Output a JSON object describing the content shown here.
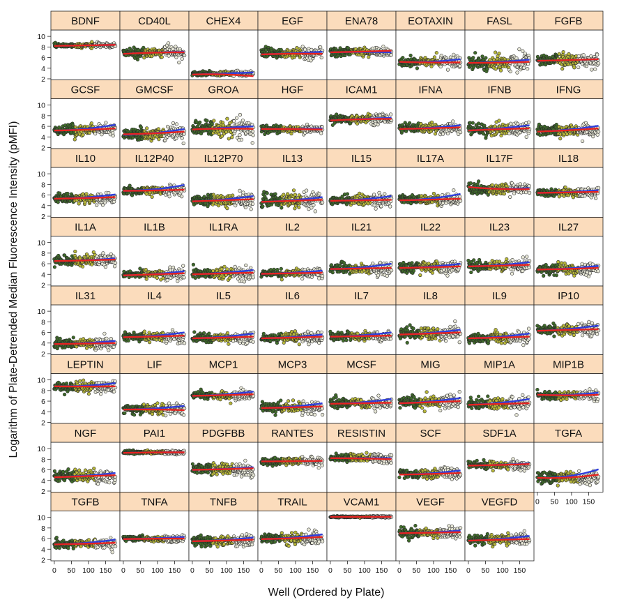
{
  "chart_data": {
    "type": "scatter",
    "layout": "trellis",
    "xlabel": "Well (Ordered by Plate)",
    "ylabel": "Logarithm of Plate-Detrended Median Fluorescence Intensity (pMFI)",
    "xlim": [
      -10,
      192
    ],
    "ylim": [
      1.8,
      11.2
    ],
    "x_ticks": [
      0,
      50,
      100,
      150
    ],
    "x_tick_labels": [
      "0",
      "50",
      "100",
      "150"
    ],
    "y_ticks": [
      2,
      4,
      6,
      8,
      10
    ],
    "y_tick_labels": [
      "2",
      "4",
      "6",
      "8",
      "10"
    ],
    "n_wells": 180,
    "point_colors": [
      "#3f6b2a",
      "#b8b83a",
      "#e8e8d8"
    ],
    "fit_colors": {
      "red": "#e8231f",
      "blue": "#2f3fdc"
    },
    "strip_color": "#fbdcbc",
    "panels": [
      {
        "name": "BDNF",
        "center": 8.3,
        "spread": 0.3,
        "red": [
          8.2,
          8.3,
          8.4
        ],
        "blue": [
          8.2,
          8.3,
          8.4
        ]
      },
      {
        "name": "CD40L",
        "center": 7.0,
        "spread": 0.6,
        "red": [
          6.7,
          7.0,
          7.0
        ],
        "blue": [
          6.7,
          7.0,
          7.1
        ]
      },
      {
        "name": "CHEX4",
        "center": 3.0,
        "spread": 0.3,
        "red": [
          2.8,
          3.0,
          2.5
        ],
        "blue": [
          2.8,
          3.0,
          3.2
        ]
      },
      {
        "name": "EGF",
        "center": 6.8,
        "spread": 0.7,
        "red": [
          6.6,
          6.8,
          6.7
        ],
        "blue": [
          6.6,
          6.8,
          7.1
        ]
      },
      {
        "name": "ENA78",
        "center": 7.1,
        "spread": 0.5,
        "red": [
          7.0,
          7.1,
          7.3
        ],
        "blue": [
          7.0,
          7.1,
          7.0
        ]
      },
      {
        "name": "EOTAXIN",
        "center": 5.2,
        "spread": 0.6,
        "red": [
          5.2,
          5.0,
          5.1
        ],
        "blue": [
          5.2,
          5.0,
          5.7
        ]
      },
      {
        "name": "FASL",
        "center": 5.1,
        "spread": 1.0,
        "red": [
          5.0,
          5.0,
          5.2
        ],
        "blue": [
          5.0,
          5.1,
          5.6
        ]
      },
      {
        "name": "FGFB",
        "center": 5.5,
        "spread": 0.8,
        "red": [
          5.4,
          5.5,
          5.7
        ],
        "blue": [
          5.4,
          5.5,
          5.7
        ]
      },
      {
        "name": "GCSF",
        "center": 5.3,
        "spread": 0.7,
        "red": [
          5.2,
          5.3,
          5.6
        ],
        "blue": [
          5.2,
          5.3,
          6.3
        ]
      },
      {
        "name": "GMCSF",
        "center": 4.6,
        "spread": 0.8,
        "red": [
          4.5,
          4.6,
          5.0
        ],
        "blue": [
          4.4,
          4.5,
          5.5
        ]
      },
      {
        "name": "GROA",
        "center": 5.6,
        "spread": 1.0,
        "red": [
          5.4,
          5.7,
          5.5
        ],
        "blue": [
          5.4,
          5.7,
          6.0
        ]
      },
      {
        "name": "HGF",
        "center": 5.5,
        "spread": 0.5,
        "red": [
          5.5,
          5.5,
          5.4
        ],
        "blue": [
          5.5,
          5.5,
          5.6
        ]
      },
      {
        "name": "ICAM1",
        "center": 7.4,
        "spread": 0.6,
        "red": [
          7.1,
          7.4,
          7.4
        ],
        "blue": [
          7.1,
          7.4,
          7.6
        ]
      },
      {
        "name": "IFNA",
        "center": 5.6,
        "spread": 0.6,
        "red": [
          5.5,
          5.6,
          5.8
        ],
        "blue": [
          5.5,
          5.6,
          6.2
        ]
      },
      {
        "name": "IFNB",
        "center": 5.5,
        "spread": 0.8,
        "red": [
          5.2,
          5.5,
          5.6
        ],
        "blue": [
          5.2,
          5.5,
          6.2
        ]
      },
      {
        "name": "IFNG",
        "center": 5.2,
        "spread": 0.7,
        "red": [
          5.0,
          5.2,
          5.6
        ],
        "blue": [
          5.0,
          5.2,
          6.1
        ]
      },
      {
        "name": "IL10",
        "center": 5.4,
        "spread": 0.6,
        "red": [
          5.3,
          5.4,
          5.6
        ],
        "blue": [
          5.3,
          5.4,
          6.1
        ]
      },
      {
        "name": "IL12P40",
        "center": 6.8,
        "spread": 0.6,
        "red": [
          6.8,
          6.8,
          7.0
        ],
        "blue": [
          6.8,
          6.8,
          7.9
        ]
      },
      {
        "name": "IL12P70",
        "center": 5.0,
        "spread": 0.7,
        "red": [
          4.8,
          5.0,
          5.2
        ],
        "blue": [
          4.8,
          5.0,
          5.8
        ]
      },
      {
        "name": "IL13",
        "center": 4.9,
        "spread": 0.9,
        "red": [
          4.7,
          4.9,
          5.1
        ],
        "blue": [
          4.7,
          4.9,
          5.6
        ]
      },
      {
        "name": "IL15",
        "center": 5.0,
        "spread": 0.7,
        "red": [
          4.9,
          5.0,
          5.1
        ],
        "blue": [
          4.9,
          5.0,
          5.8
        ]
      },
      {
        "name": "IL17A",
        "center": 5.1,
        "spread": 0.6,
        "red": [
          5.0,
          5.1,
          5.3
        ],
        "blue": [
          5.0,
          5.1,
          6.2
        ]
      },
      {
        "name": "IL17F",
        "center": 7.2,
        "spread": 0.7,
        "red": [
          7.5,
          7.0,
          7.1
        ],
        "blue": [
          7.5,
          7.0,
          7.3
        ]
      },
      {
        "name": "IL18",
        "center": 6.5,
        "spread": 0.5,
        "red": [
          6.4,
          6.5,
          6.6
        ],
        "blue": [
          6.4,
          6.5,
          6.9
        ]
      },
      {
        "name": "IL1A",
        "center": 6.6,
        "spread": 0.7,
        "red": [
          6.5,
          6.6,
          6.8
        ],
        "blue": [
          6.5,
          6.6,
          7.0
        ]
      },
      {
        "name": "IL1B",
        "center": 4.0,
        "spread": 0.6,
        "red": [
          3.8,
          4.0,
          4.2
        ],
        "blue": [
          3.8,
          3.9,
          4.6
        ]
      },
      {
        "name": "IL1RA",
        "center": 4.2,
        "spread": 0.7,
        "red": [
          4.0,
          4.2,
          4.3
        ],
        "blue": [
          4.0,
          4.2,
          4.8
        ]
      },
      {
        "name": "IL2",
        "center": 4.2,
        "spread": 0.5,
        "red": [
          4.1,
          4.2,
          4.3
        ],
        "blue": [
          4.1,
          4.2,
          4.7
        ]
      },
      {
        "name": "IL21",
        "center": 5.1,
        "spread": 0.7,
        "red": [
          5.0,
          5.1,
          5.2
        ],
        "blue": [
          5.0,
          5.1,
          6.0
        ]
      },
      {
        "name": "IL22",
        "center": 5.3,
        "spread": 0.7,
        "red": [
          5.2,
          5.3,
          5.5
        ],
        "blue": [
          5.2,
          5.3,
          6.0
        ]
      },
      {
        "name": "IL23",
        "center": 5.6,
        "spread": 0.7,
        "red": [
          5.5,
          5.6,
          5.8
        ],
        "blue": [
          5.5,
          5.6,
          6.3
        ]
      },
      {
        "name": "IL27",
        "center": 5.0,
        "spread": 0.7,
        "red": [
          4.9,
          5.0,
          5.2
        ],
        "blue": [
          4.9,
          5.0,
          5.6
        ]
      },
      {
        "name": "IL31",
        "center": 3.9,
        "spread": 0.6,
        "red": [
          3.8,
          3.9,
          4.0
        ],
        "blue": [
          3.8,
          3.9,
          4.4
        ]
      },
      {
        "name": "IL4",
        "center": 5.2,
        "spread": 0.6,
        "red": [
          5.1,
          5.2,
          5.4
        ],
        "blue": [
          5.1,
          5.2,
          6.0
        ]
      },
      {
        "name": "IL5",
        "center": 5.0,
        "spread": 0.6,
        "red": [
          4.9,
          5.0,
          5.2
        ],
        "blue": [
          4.9,
          5.0,
          5.8
        ]
      },
      {
        "name": "IL6",
        "center": 5.0,
        "spread": 0.6,
        "red": [
          4.9,
          5.0,
          5.2
        ],
        "blue": [
          4.9,
          5.0,
          5.6
        ]
      },
      {
        "name": "IL7",
        "center": 5.3,
        "spread": 0.6,
        "red": [
          5.2,
          5.3,
          5.4
        ],
        "blue": [
          5.2,
          5.3,
          6.0
        ]
      },
      {
        "name": "IL8",
        "center": 5.8,
        "spread": 0.8,
        "red": [
          5.6,
          5.8,
          6.0
        ],
        "blue": [
          5.6,
          5.8,
          6.5
        ]
      },
      {
        "name": "IL9",
        "center": 5.0,
        "spread": 0.7,
        "red": [
          4.9,
          5.0,
          5.2
        ],
        "blue": [
          4.9,
          5.0,
          5.8
        ]
      },
      {
        "name": "IP10",
        "center": 6.5,
        "spread": 0.7,
        "red": [
          6.3,
          6.5,
          6.6
        ],
        "blue": [
          6.3,
          6.5,
          7.3
        ]
      },
      {
        "name": "LEPTIN",
        "center": 8.7,
        "spread": 0.6,
        "red": [
          8.8,
          8.7,
          8.8
        ],
        "blue": [
          8.8,
          8.7,
          9.4
        ]
      },
      {
        "name": "LIF",
        "center": 4.5,
        "spread": 0.7,
        "red": [
          4.4,
          4.5,
          4.3
        ],
        "blue": [
          4.4,
          4.5,
          5.1
        ]
      },
      {
        "name": "MCP1",
        "center": 7.1,
        "spread": 0.5,
        "red": [
          7.0,
          7.1,
          7.3
        ],
        "blue": [
          7.0,
          7.1,
          7.8
        ]
      },
      {
        "name": "MCP3",
        "center": 4.8,
        "spread": 0.7,
        "red": [
          4.7,
          4.8,
          5.0
        ],
        "blue": [
          4.7,
          4.8,
          5.6
        ]
      },
      {
        "name": "MCSF",
        "center": 5.6,
        "spread": 0.7,
        "red": [
          5.5,
          5.6,
          5.7
        ],
        "blue": [
          5.5,
          5.6,
          6.4
        ]
      },
      {
        "name": "MIG",
        "center": 5.8,
        "spread": 0.7,
        "red": [
          5.6,
          5.8,
          6.0
        ],
        "blue": [
          5.6,
          5.8,
          6.6
        ]
      },
      {
        "name": "MIP1A",
        "center": 5.5,
        "spread": 0.8,
        "red": [
          5.3,
          5.5,
          5.6
        ],
        "blue": [
          5.3,
          5.5,
          6.4
        ]
      },
      {
        "name": "MIP1B",
        "center": 7.1,
        "spread": 0.6,
        "red": [
          7.2,
          7.0,
          7.2
        ],
        "blue": [
          7.2,
          7.0,
          7.6
        ]
      },
      {
        "name": "NGF",
        "center": 4.8,
        "spread": 0.8,
        "red": [
          4.6,
          4.8,
          5.0
        ],
        "blue": [
          4.6,
          4.8,
          5.4
        ]
      },
      {
        "name": "PAI1",
        "center": 9.3,
        "spread": 0.2,
        "red": [
          9.2,
          9.3,
          9.3
        ],
        "blue": [
          9.2,
          9.3,
          9.3
        ]
      },
      {
        "name": "PDGFBB",
        "center": 6.1,
        "spread": 0.8,
        "red": [
          6.0,
          6.1,
          6.3
        ],
        "blue": [
          6.0,
          6.1,
          6.5
        ]
      },
      {
        "name": "RANTES",
        "center": 7.6,
        "spread": 0.5,
        "red": [
          7.6,
          7.6,
          7.7
        ],
        "blue": [
          7.6,
          7.6,
          7.7
        ]
      },
      {
        "name": "RESISTIN",
        "center": 8.2,
        "spread": 0.5,
        "red": [
          8.2,
          8.2,
          8.0
        ],
        "blue": [
          8.2,
          8.2,
          8.2
        ]
      },
      {
        "name": "SCF",
        "center": 5.2,
        "spread": 0.6,
        "red": [
          5.1,
          5.2,
          5.4
        ],
        "blue": [
          5.1,
          5.2,
          5.9
        ]
      },
      {
        "name": "SDF1A",
        "center": 6.9,
        "spread": 0.5,
        "red": [
          6.8,
          6.9,
          7.1
        ],
        "blue": [
          6.8,
          6.9,
          7.2
        ]
      },
      {
        "name": "TGFA",
        "center": 4.6,
        "spread": 0.8,
        "red": [
          4.5,
          4.3,
          5.1
        ],
        "blue": [
          4.5,
          4.3,
          6.1
        ]
      },
      {
        "name": "TGFB",
        "center": 5.0,
        "spread": 0.6,
        "red": [
          4.9,
          5.0,
          5.2
        ],
        "blue": [
          4.9,
          5.0,
          5.8
        ]
      },
      {
        "name": "TNFA",
        "center": 6.0,
        "spread": 0.4,
        "red": [
          5.9,
          6.0,
          6.0
        ],
        "blue": [
          5.9,
          6.0,
          6.3
        ]
      },
      {
        "name": "TNFB",
        "center": 5.6,
        "spread": 0.7,
        "red": [
          5.5,
          5.6,
          5.8
        ],
        "blue": [
          5.5,
          5.6,
          6.2
        ]
      },
      {
        "name": "TRAIL",
        "center": 6.0,
        "spread": 0.7,
        "red": [
          5.9,
          6.0,
          6.3
        ],
        "blue": [
          5.9,
          6.0,
          6.8
        ]
      },
      {
        "name": "VCAM1",
        "center": 10.1,
        "spread": 0.1,
        "red": [
          10.1,
          10.1,
          10.1
        ],
        "blue": [
          10.1,
          10.1,
          10.1
        ]
      },
      {
        "name": "VEGF",
        "center": 7.1,
        "spread": 0.6,
        "red": [
          7.0,
          7.1,
          7.2
        ],
        "blue": [
          7.0,
          7.1,
          7.5
        ]
      },
      {
        "name": "VEGFD",
        "center": 5.8,
        "spread": 0.7,
        "red": [
          5.6,
          5.8,
          5.9
        ],
        "blue": [
          5.6,
          5.8,
          6.5
        ]
      }
    ]
  }
}
